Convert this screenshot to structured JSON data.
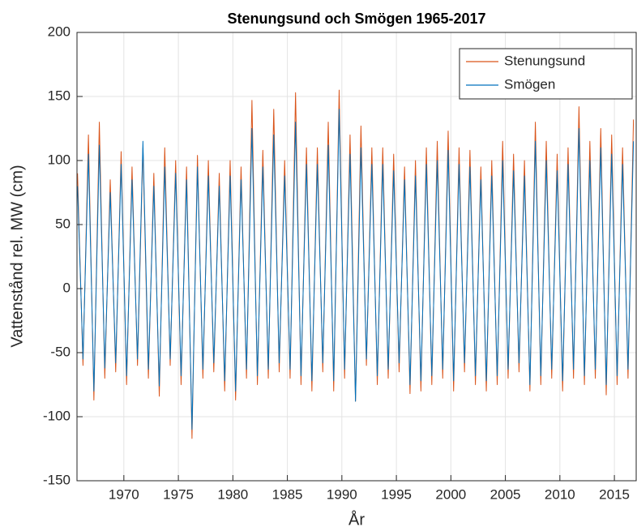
{
  "chart_data": {
    "type": "line",
    "title": "Stenungsund och Smögen 1965-2017",
    "x_label": "År",
    "y_label": "Vattenstånd rel. MW (cm)",
    "x": [
      1965.75,
      1966.25,
      1966.75,
      1967.25,
      1967.75,
      1968.25,
      1968.75,
      1969.25,
      1969.75,
      1970.25,
      1970.75,
      1971.25,
      1971.75,
      1972.25,
      1972.75,
      1973.25,
      1973.75,
      1974.25,
      1974.75,
      1975.25,
      1975.75,
      1976.25,
      1976.75,
      1977.25,
      1977.75,
      1978.25,
      1978.75,
      1979.25,
      1979.75,
      1980.25,
      1980.75,
      1981.25,
      1981.75,
      1982.25,
      1982.75,
      1983.25,
      1983.75,
      1984.25,
      1984.75,
      1985.25,
      1985.75,
      1986.25,
      1986.75,
      1987.25,
      1987.75,
      1988.25,
      1988.75,
      1989.25,
      1989.75,
      1990.25,
      1990.75,
      1991.25,
      1991.75,
      1992.25,
      1992.75,
      1993.25,
      1993.75,
      1994.25,
      1994.75,
      1995.25,
      1995.75,
      1996.25,
      1996.75,
      1997.25,
      1997.75,
      1998.25,
      1998.75,
      1999.25,
      1999.75,
      2000.25,
      2000.75,
      2001.25,
      2001.75,
      2002.25,
      2002.75,
      2003.25,
      2003.75,
      2004.25,
      2004.75,
      2005.25,
      2005.75,
      2006.25,
      2006.75,
      2007.25,
      2007.75,
      2008.25,
      2008.75,
      2009.25,
      2009.75,
      2010.25,
      2010.75,
      2011.25,
      2011.75,
      2012.25,
      2012.75,
      2013.25,
      2013.75,
      2014.25,
      2014.75,
      2015.25,
      2015.75,
      2016.25,
      2016.75
    ],
    "series": [
      {
        "name": "Stenungsund",
        "color": "#d95319",
        "values": [
          90,
          -60,
          120,
          -87,
          130,
          -70,
          85,
          -65,
          107,
          -75,
          95,
          -60,
          110,
          -70,
          90,
          -84,
          110,
          -60,
          100,
          -75,
          95,
          -117,
          104,
          -70,
          100,
          -65,
          90,
          -80,
          100,
          -87,
          95,
          -70,
          147,
          -75,
          108,
          -70,
          140,
          -65,
          100,
          -70,
          153,
          -75,
          110,
          -80,
          110,
          -65,
          130,
          -80,
          155,
          -70,
          120,
          -88,
          127,
          -60,
          110,
          -75,
          110,
          -70,
          105,
          -65,
          95,
          -82,
          100,
          -80,
          110,
          -75,
          115,
          -70,
          123,
          -80,
          110,
          -65,
          108,
          -75,
          95,
          -80,
          100,
          -75,
          115,
          -70,
          105,
          -65,
          100,
          -80,
          130,
          -75,
          115,
          -70,
          105,
          -80,
          110,
          -70,
          142,
          -75,
          115,
          -70,
          125,
          -83,
          120,
          -75,
          110,
          -70,
          132
        ]
      },
      {
        "name": "Smögen",
        "color": "#0072bd",
        "values": [
          80,
          -55,
          105,
          -80,
          112,
          -62,
          75,
          -58,
          97,
          -68,
          85,
          -55,
          115,
          -63,
          80,
          -76,
          95,
          -55,
          90,
          -68,
          85,
          -110,
          95,
          -63,
          88,
          -58,
          80,
          -72,
          88,
          -80,
          85,
          -63,
          125,
          -68,
          95,
          -63,
          120,
          -58,
          88,
          -63,
          130,
          -68,
          97,
          -72,
          97,
          -58,
          112,
          -72,
          140,
          -63,
          105,
          -88,
          110,
          -55,
          97,
          -68,
          97,
          -63,
          92,
          -58,
          85,
          -75,
          88,
          -72,
          97,
          -68,
          100,
          -63,
          108,
          -72,
          97,
          -58,
          95,
          -68,
          85,
          -72,
          88,
          -68,
          100,
          -63,
          92,
          -58,
          88,
          -75,
          115,
          -68,
          100,
          -63,
          92,
          -72,
          97,
          -63,
          125,
          -68,
          100,
          -63,
          110,
          -75,
          105,
          -68,
          97,
          -63,
          115
        ]
      }
    ],
    "xlim": [
      1965.7,
      2017.0
    ],
    "xticks": [
      1970,
      1975,
      1980,
      1985,
      1990,
      1995,
      2000,
      2005,
      2010,
      2015
    ],
    "ylim": [
      -150,
      200
    ],
    "yticks": [
      -150,
      -100,
      -50,
      0,
      50,
      100,
      150,
      200
    ],
    "grid": true,
    "legend": "northeast"
  }
}
